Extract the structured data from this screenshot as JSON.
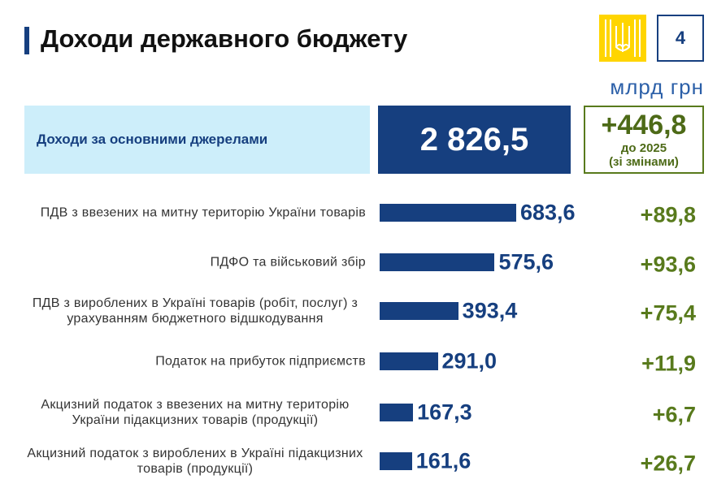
{
  "header": {
    "title": "Доходи державного бюджету",
    "page_number": "4",
    "unit": "млрд грн"
  },
  "chart_data": {
    "type": "bar",
    "orientation": "horizontal",
    "title": "Доходи за основними джерелами",
    "total": 2826.5,
    "total_label": "2 826,5",
    "total_change": 446.8,
    "total_change_label": "+446,8",
    "total_change_note": [
      "до 2025",
      "(зі змінами)"
    ],
    "categories": [
      "ПДВ з ввезених на митну територію України товарів",
      "ПДФО та військовий збір",
      "ПДВ з вироблених в Україні товарів (робіт, послуг) з урахуванням бюджетного відшкодування",
      "Податок на прибуток підприємств",
      "Акцизний податок з ввезених на митну територію України підакцизних товарів (продукції)",
      "Акцизний податок з вироблених в Україні підакцизних товарів (продукції)"
    ],
    "values": [
      683.6,
      575.6,
      393.4,
      291.0,
      167.3,
      161.6
    ],
    "value_labels": [
      "683,6",
      "575,6",
      "393,4",
      "291,0",
      "167,3",
      "161,6"
    ],
    "changes": [
      89.8,
      93.6,
      75.4,
      11.9,
      6.7,
      26.7
    ],
    "change_labels": [
      "+89,8",
      "+93,6",
      "+75,4",
      "+11,9",
      "+6,7",
      "+26,7"
    ],
    "color": "#163f7f",
    "change_color": "#587a1c"
  }
}
